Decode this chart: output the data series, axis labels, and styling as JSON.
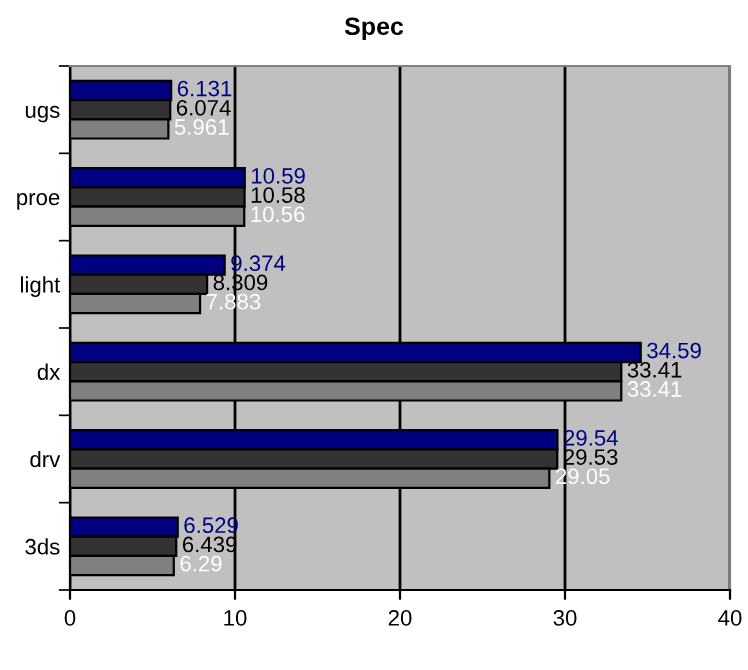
{
  "chart_data": {
    "type": "bar",
    "orientation": "horizontal",
    "title": "Spec",
    "categories": [
      "ugs",
      "proe",
      "light",
      "dx",
      "drv",
      "3ds"
    ],
    "series": [
      {
        "color": "#000080",
        "values": [
          6.131,
          10.59,
          9.374,
          34.59,
          29.54,
          6.529
        ]
      },
      {
        "color": "#333333",
        "values": [
          6.074,
          10.58,
          8.309,
          33.41,
          29.53,
          6.439
        ]
      },
      {
        "color": "#808080",
        "values": [
          5.961,
          10.56,
          7.883,
          33.41,
          29.05,
          6.29
        ]
      }
    ],
    "xlim": [
      0,
      40
    ],
    "xticks": [
      0,
      10,
      20,
      30,
      40
    ],
    "grid": "x",
    "data_labels": true,
    "legend": false
  }
}
